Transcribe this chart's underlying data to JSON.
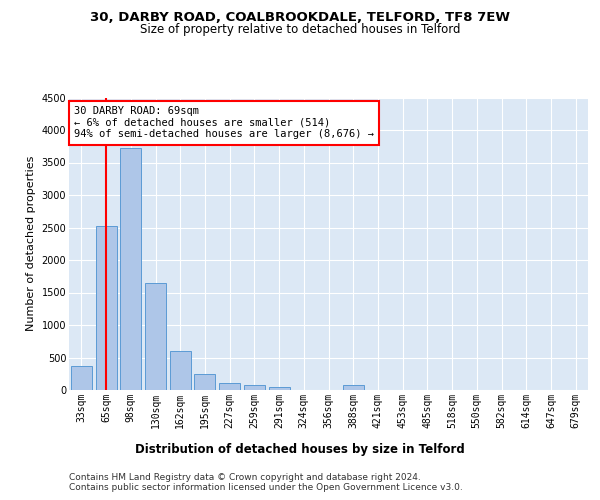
{
  "title1": "30, DARBY ROAD, COALBROOKDALE, TELFORD, TF8 7EW",
  "title2": "Size of property relative to detached houses in Telford",
  "xlabel": "Distribution of detached houses by size in Telford",
  "ylabel": "Number of detached properties",
  "categories": [
    "33sqm",
    "65sqm",
    "98sqm",
    "130sqm",
    "162sqm",
    "195sqm",
    "227sqm",
    "259sqm",
    "291sqm",
    "324sqm",
    "356sqm",
    "388sqm",
    "421sqm",
    "453sqm",
    "485sqm",
    "518sqm",
    "550sqm",
    "582sqm",
    "614sqm",
    "647sqm",
    "679sqm"
  ],
  "values": [
    370,
    2520,
    3730,
    1640,
    600,
    240,
    110,
    70,
    50,
    0,
    0,
    70,
    0,
    0,
    0,
    0,
    0,
    0,
    0,
    0,
    0
  ],
  "bar_color": "#aec6e8",
  "bar_edge_color": "#5b9bd5",
  "annotation_text": "30 DARBY ROAD: 69sqm\n← 6% of detached houses are smaller (514)\n94% of semi-detached houses are larger (8,676) →",
  "annotation_box_color": "white",
  "annotation_box_edge_color": "red",
  "vline_color": "red",
  "vline_x": 1.0,
  "ylim": [
    0,
    4500
  ],
  "yticks": [
    0,
    500,
    1000,
    1500,
    2000,
    2500,
    3000,
    3500,
    4000,
    4500
  ],
  "bg_color": "#dce8f5",
  "footer": "Contains HM Land Registry data © Crown copyright and database right 2024.\nContains public sector information licensed under the Open Government Licence v3.0.",
  "title1_fontsize": 9.5,
  "title2_fontsize": 8.5,
  "xlabel_fontsize": 8.5,
  "ylabel_fontsize": 8,
  "tick_fontsize": 7,
  "footer_fontsize": 6.5
}
